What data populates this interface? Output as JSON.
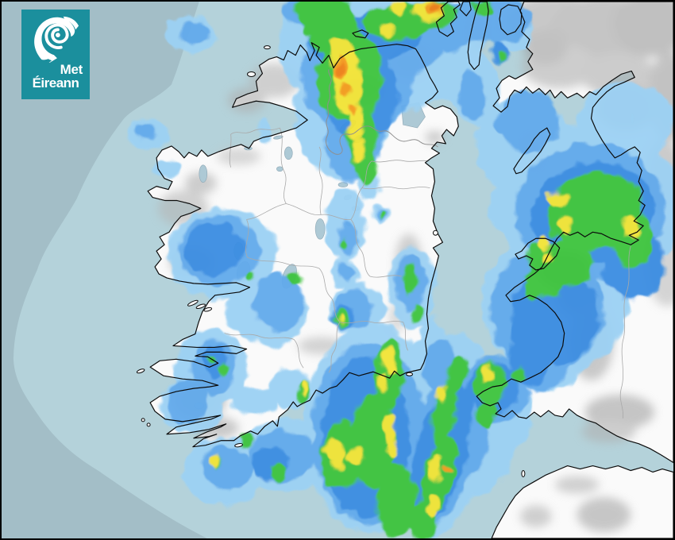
{
  "page": {
    "title": "Met Éireann rainfall radar map of Ireland and Britain"
  },
  "logo": {
    "line1": "Met",
    "line2": "Éireann",
    "background_color": "#1b8f9d",
    "text_color": "#ffffff",
    "icon": "met-eireann-swirl-icon"
  },
  "map": {
    "colors": {
      "sea_outside_radar_range": "#a3bec7",
      "sea_inside_radar_range": "#b4d2da",
      "land": "#fafafa",
      "lake": "#adc9d5",
      "lake_outline": "#8fa8b5",
      "coastline": "#0b0b0b",
      "internal_border": "#a9a9a9",
      "ni_border": "#8f8f8f"
    }
  },
  "radar": {
    "levels": [
      {
        "name": "very-light-rain",
        "color": "#9cd1f4"
      },
      {
        "name": "light-rain",
        "color": "#62aaec"
      },
      {
        "name": "moderate-rain",
        "color": "#3b8de2"
      },
      {
        "name": "heavy-rain",
        "color": "#3ec43e"
      },
      {
        "name": "very-heavy-rain",
        "color": "#f2e435"
      },
      {
        "name": "intense-rain",
        "color": "#f49b1d"
      },
      {
        "name": "extreme-core",
        "color": "#ed7d12"
      }
    ],
    "cells": [
      [
        470,
        60,
        120,
        85,
        0,
        0
      ],
      [
        430,
        140,
        60,
        85,
        0,
        0
      ],
      [
        520,
        42,
        95,
        50,
        0,
        0
      ],
      [
        580,
        90,
        38,
        42,
        0,
        0
      ],
      [
        375,
        25,
        22,
        26,
        0,
        0
      ],
      [
        240,
        42,
        30,
        24,
        0,
        0
      ],
      [
        185,
        168,
        26,
        20,
        0,
        0
      ],
      [
        210,
        212,
        16,
        12,
        0,
        0
      ],
      [
        332,
        165,
        9,
        18,
        0,
        0
      ],
      [
        280,
        320,
        70,
        58,
        0,
        0
      ],
      [
        340,
        392,
        46,
        46,
        0,
        0
      ],
      [
        305,
        392,
        22,
        26,
        0,
        0
      ],
      [
        435,
        282,
        26,
        46,
        0,
        0
      ],
      [
        465,
        232,
        16,
        20,
        0,
        0
      ],
      [
        480,
        270,
        12,
        12,
        0,
        0
      ],
      [
        435,
        345,
        20,
        18,
        0,
        0
      ],
      [
        450,
        390,
        36,
        32,
        0,
        0
      ],
      [
        520,
        362,
        30,
        52,
        0,
        0
      ],
      [
        545,
        422,
        16,
        22,
        0,
        0
      ],
      [
        745,
        262,
        115,
        108,
        0,
        0
      ],
      [
        700,
        382,
        92,
        90,
        0,
        0
      ],
      [
        660,
        182,
        60,
        62,
        0,
        0
      ],
      [
        790,
        152,
        60,
        50,
        0,
        0
      ],
      [
        640,
        262,
        24,
        32,
        0,
        0
      ],
      [
        600,
        112,
        30,
        45,
        0,
        0
      ],
      [
        640,
        152,
        26,
        26,
        0,
        0
      ],
      [
        652,
        42,
        22,
        22,
        0,
        0
      ],
      [
        690,
        432,
        56,
        62,
        0,
        0
      ],
      [
        620,
        522,
        52,
        56,
        0,
        0
      ],
      [
        600,
        572,
        46,
        52,
        0,
        0
      ],
      [
        575,
        452,
        32,
        32,
        0,
        0
      ],
      [
        560,
        562,
        56,
        122,
        15,
        0
      ],
      [
        470,
        542,
        88,
        132,
        0,
        0
      ],
      [
        540,
        472,
        36,
        42,
        0,
        0
      ],
      [
        360,
        575,
        62,
        46,
        0,
        0
      ],
      [
        280,
        595,
        52,
        42,
        0,
        0
      ],
      [
        265,
        465,
        46,
        50,
        0,
        0
      ],
      [
        320,
        505,
        30,
        18,
        0,
        0
      ],
      [
        365,
        490,
        26,
        26,
        0,
        0
      ],
      [
        240,
        512,
        40,
        35,
        0,
        0
      ],
      [
        450,
        92,
        72,
        76,
        0,
        1
      ],
      [
        445,
        172,
        36,
        56,
        0,
        1
      ],
      [
        500,
        52,
        62,
        40,
        0,
        1
      ],
      [
        560,
        32,
        46,
        30,
        0,
        1
      ],
      [
        620,
        22,
        50,
        28,
        0,
        1
      ],
      [
        245,
        40,
        18,
        15,
        0,
        1
      ],
      [
        183,
        165,
        15,
        11,
        0,
        1
      ],
      [
        275,
        315,
        52,
        45,
        0,
        1
      ],
      [
        350,
        382,
        32,
        36,
        0,
        1
      ],
      [
        438,
        300,
        13,
        22,
        0,
        1
      ],
      [
        480,
        270,
        8,
        8,
        0,
        1
      ],
      [
        436,
        344,
        12,
        12,
        0,
        1
      ],
      [
        445,
        390,
        25,
        25,
        0,
        1
      ],
      [
        518,
        356,
        20,
        36,
        0,
        1
      ],
      [
        745,
        265,
        95,
        86,
        0,
        1
      ],
      [
        690,
        392,
        72,
        76,
        0,
        1
      ],
      [
        668,
        152,
        36,
        40,
        0,
        1
      ],
      [
        596,
        120,
        18,
        30,
        0,
        1
      ],
      [
        638,
        152,
        15,
        15,
        0,
        1
      ],
      [
        650,
        36,
        13,
        13,
        0,
        1
      ],
      [
        645,
        20,
        13,
        11,
        0,
        1
      ],
      [
        680,
        442,
        42,
        52,
        0,
        1
      ],
      [
        625,
        492,
        42,
        42,
        0,
        1
      ],
      [
        590,
        562,
        26,
        36,
        0,
        1
      ],
      [
        558,
        565,
        43,
        106,
        15,
        1
      ],
      [
        555,
        462,
        22,
        32,
        0,
        1
      ],
      [
        465,
        547,
        72,
        116,
        0,
        1
      ],
      [
        355,
        575,
        42,
        32,
        0,
        1
      ],
      [
        285,
        590,
        32,
        28,
        0,
        1
      ],
      [
        268,
        462,
        28,
        35,
        0,
        1
      ],
      [
        235,
        506,
        26,
        28,
        0,
        1
      ],
      [
        375,
        12,
        20,
        16,
        0,
        1
      ],
      [
        455,
        115,
        46,
        62,
        0,
        2
      ],
      [
        480,
        42,
        52,
        30,
        0,
        2
      ],
      [
        415,
        42,
        26,
        40,
        0,
        2
      ],
      [
        268,
        313,
        38,
        33,
        0,
        2
      ],
      [
        748,
        268,
        78,
        64,
        -15,
        2
      ],
      [
        700,
        400,
        56,
        60,
        0,
        2
      ],
      [
        800,
        332,
        40,
        46,
        0,
        2
      ],
      [
        630,
        64,
        11,
        15,
        0,
        2
      ],
      [
        668,
        452,
        26,
        36,
        0,
        2
      ],
      [
        622,
        490,
        32,
        33,
        0,
        2
      ],
      [
        556,
        572,
        33,
        92,
        15,
        2
      ],
      [
        460,
        552,
        56,
        102,
        0,
        2
      ],
      [
        340,
        585,
        24,
        20,
        0,
        2
      ],
      [
        270,
        455,
        15,
        22,
        0,
        2
      ],
      [
        432,
        400,
        14,
        14,
        0,
        2
      ],
      [
        440,
        96,
        42,
        56,
        0,
        3
      ],
      [
        420,
        32,
        32,
        40,
        0,
        3
      ],
      [
        456,
        172,
        18,
        42,
        0,
        3
      ],
      [
        462,
        208,
        14,
        26,
        0,
        3
      ],
      [
        500,
        26,
        42,
        23,
        0,
        3
      ],
      [
        545,
        16,
        30,
        17,
        0,
        3
      ],
      [
        395,
        20,
        18,
        26,
        0,
        3
      ],
      [
        385,
        12,
        12,
        18,
        0,
        3
      ],
      [
        610,
        8,
        14,
        10,
        0,
        3
      ],
      [
        750,
        266,
        62,
        49,
        -15,
        3
      ],
      [
        718,
        332,
        30,
        28,
        0,
        3
      ],
      [
        690,
        346,
        25,
        30,
        0,
        3
      ],
      [
        800,
        302,
        25,
        35,
        0,
        3
      ],
      [
        685,
        322,
        22,
        18,
        0,
        3
      ],
      [
        700,
        352,
        14,
        22,
        0,
        3
      ],
      [
        672,
        366,
        10,
        12,
        0,
        3
      ],
      [
        655,
        472,
        9,
        11,
        0,
        3
      ],
      [
        618,
        484,
        21,
        27,
        0,
        3
      ],
      [
        612,
        522,
        12,
        18,
        0,
        3
      ],
      [
        632,
        70,
        5,
        7,
        0,
        3
      ],
      [
        560,
        522,
        16,
        40,
        10,
        3
      ],
      [
        552,
        602,
        20,
        50,
        15,
        3
      ],
      [
        576,
        472,
        12,
        25,
        20,
        3
      ],
      [
        490,
        472,
        18,
        46,
        5,
        3
      ],
      [
        470,
        557,
        28,
        60,
        0,
        3
      ],
      [
        430,
        595,
        27,
        22,
        0,
        3
      ],
      [
        430,
        572,
        25,
        40,
        0,
        3
      ],
      [
        500,
        632,
        25,
        45,
        0,
        3
      ],
      [
        316,
        348,
        6,
        6,
        0,
        3
      ],
      [
        372,
        352,
        8,
        10,
        0,
        3
      ],
      [
        433,
        308,
        5,
        7,
        0,
        3
      ],
      [
        481,
        270,
        4,
        6,
        0,
        3
      ],
      [
        430,
        401,
        9,
        10,
        0,
        3
      ],
      [
        517,
        354,
        10,
        20,
        0,
        3
      ],
      [
        525,
        396,
        7,
        10,
        0,
        3
      ],
      [
        350,
        595,
        9,
        11,
        0,
        3
      ],
      [
        310,
        556,
        8,
        8,
        0,
        3
      ],
      [
        272,
        583,
        6,
        8,
        0,
        3
      ],
      [
        267,
        452,
        5,
        6,
        0,
        3
      ],
      [
        281,
        467,
        6,
        8,
        0,
        3
      ],
      [
        382,
        495,
        8,
        14,
        0,
        3
      ],
      [
        532,
        660,
        20,
        22,
        0,
        3
      ],
      [
        438,
        102,
        18,
        40,
        0,
        4
      ],
      [
        430,
        66,
        16,
        20,
        0,
        4
      ],
      [
        448,
        152,
        10,
        22,
        0,
        4
      ],
      [
        452,
        188,
        8,
        16,
        0,
        4
      ],
      [
        540,
        12,
        20,
        12,
        0,
        4
      ],
      [
        500,
        8,
        12,
        8,
        0,
        4
      ],
      [
        488,
        36,
        10,
        8,
        0,
        4
      ],
      [
        703,
        250,
        16,
        9,
        -10,
        4
      ],
      [
        713,
        284,
        9,
        14,
        0,
        4
      ],
      [
        795,
        285,
        11,
        16,
        0,
        4
      ],
      [
        687,
        305,
        7,
        10,
        0,
        4
      ],
      [
        692,
        323,
        5,
        6,
        0,
        4
      ],
      [
        615,
        472,
        7,
        12,
        0,
        4
      ],
      [
        490,
        456,
        9,
        18,
        0,
        4
      ],
      [
        481,
        484,
        6,
        10,
        0,
        4
      ],
      [
        490,
        541,
        7,
        20,
        0,
        4
      ],
      [
        494,
        566,
        6,
        12,
        0,
        4
      ],
      [
        421,
        569,
        11,
        17,
        -30,
        4
      ],
      [
        447,
        575,
        12,
        10,
        -20,
        4
      ],
      [
        425,
        585,
        8,
        10,
        0,
        4
      ],
      [
        545,
        596,
        6,
        9,
        0,
        4
      ],
      [
        546,
        640,
        7,
        14,
        0,
        4
      ],
      [
        556,
        496,
        7,
        13,
        0,
        4
      ],
      [
        549,
        591,
        8,
        17,
        0,
        4
      ],
      [
        270,
        582,
        6,
        8,
        0,
        4
      ],
      [
        383,
        490,
        4,
        8,
        0,
        4
      ],
      [
        429,
        403,
        3,
        4,
        0,
        4
      ],
      [
        429,
        84,
        8,
        14,
        0,
        5
      ],
      [
        433,
        112,
        6,
        10,
        0,
        5
      ],
      [
        548,
        9,
        13,
        8,
        0,
        5
      ],
      [
        445,
        136,
        4,
        7,
        0,
        5
      ],
      [
        564,
        591,
        4,
        5,
        0,
        5
      ],
      [
        550,
        8,
        7,
        5,
        0,
        6
      ],
      [
        429,
        86,
        4,
        8,
        0,
        6
      ]
    ]
  }
}
